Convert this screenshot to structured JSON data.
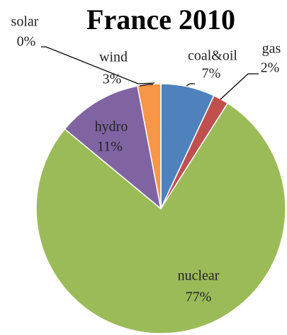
{
  "chart_data": {
    "type": "pie",
    "title": "France 2010",
    "categories": [
      "coal&oil",
      "gas",
      "nuclear",
      "hydro",
      "wind",
      "solar"
    ],
    "values": [
      7,
      2,
      77,
      11,
      3,
      0
    ],
    "value_labels": [
      "7%",
      "2%",
      "77%",
      "11%",
      "3%",
      "0%"
    ],
    "colors": [
      "#4f81bd",
      "#c0504d",
      "#9bbb59",
      "#8064a2",
      "#f79646",
      "#4bacc6"
    ]
  }
}
